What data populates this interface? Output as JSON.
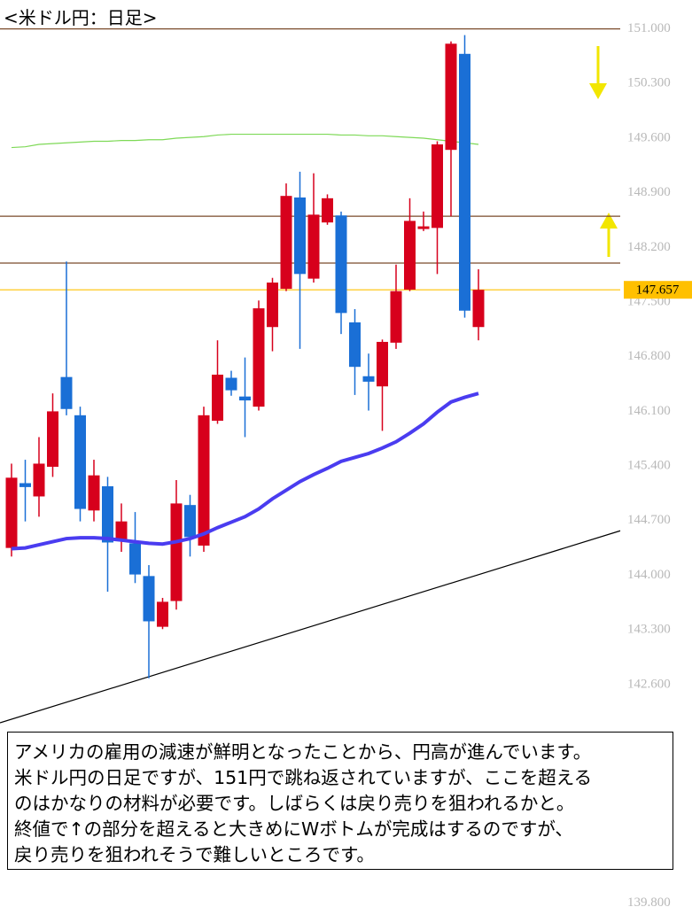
{
  "chart_data": {
    "type": "candlestick",
    "title": "<米ドル円：日足>",
    "up_color": "#d7001c",
    "down_color": "#1a6fd6",
    "open": [
      144.35,
      145.18,
      145.01,
      145.39,
      146.54,
      146.05,
      144.83,
      145.14,
      144.44,
      144.41,
      143.99,
      143.34,
      143.67,
      144.9,
      144.38,
      145.98,
      146.53,
      146.29,
      146.16,
      147.18,
      147.67,
      148.84,
      147.8,
      148.52,
      148.61,
      147.24,
      146.55,
      146.42,
      146.98,
      147.66,
      148.44,
      148.45,
      149.45,
      150.68,
      147.18
    ],
    "high": [
      145.43,
      145.48,
      145.77,
      146.33,
      148.02,
      146.16,
      145.48,
      145.26,
      144.92,
      144.81,
      144.13,
      143.71,
      145.22,
      145.03,
      146.16,
      147.01,
      146.62,
      146.79,
      147.52,
      147.81,
      149.02,
      149.17,
      149.15,
      148.88,
      148.66,
      147.41,
      146.84,
      147.02,
      147.98,
      148.83,
      148.66,
      149.56,
      150.84,
      150.92,
      147.92
    ],
    "low": [
      144.24,
      144.69,
      144.75,
      145.26,
      146.05,
      144.69,
      144.69,
      143.79,
      144.3,
      143.9,
      142.68,
      143.31,
      143.56,
      144.24,
      144.3,
      145.94,
      146.3,
      145.77,
      146.11,
      146.87,
      147.64,
      146.9,
      147.75,
      148.49,
      147.09,
      146.31,
      146.11,
      145.85,
      146.9,
      147.64,
      148.41,
      147.86,
      148.6,
      147.3,
      147.01
    ],
    "close": [
      145.25,
      145.13,
      145.43,
      146.1,
      146.13,
      144.85,
      145.28,
      144.42,
      144.69,
      144.01,
      143.41,
      143.66,
      144.92,
      144.49,
      146.05,
      146.57,
      146.37,
      146.24,
      147.42,
      147.75,
      148.86,
      147.86,
      148.62,
      148.83,
      147.36,
      146.67,
      146.48,
      146.99,
      147.64,
      148.54,
      148.47,
      149.52,
      150.81,
      147.39,
      147.657
    ],
    "moving_averages": [
      {
        "color": "#4a3cf0",
        "values": [
          144.34,
          144.35,
          144.39,
          144.43,
          144.47,
          144.48,
          144.48,
          144.47,
          144.45,
          144.43,
          144.41,
          144.4,
          144.43,
          144.47,
          144.53,
          144.61,
          144.68,
          144.75,
          144.85,
          144.98,
          145.09,
          145.2,
          145.29,
          145.37,
          145.46,
          145.51,
          145.56,
          145.63,
          145.71,
          145.82,
          145.94,
          146.09,
          146.22,
          146.28,
          146.33
        ]
      },
      {
        "color": "#7ed957",
        "values": [
          149.48,
          149.49,
          149.52,
          149.53,
          149.54,
          149.55,
          149.56,
          149.56,
          149.57,
          149.57,
          149.58,
          149.58,
          149.6,
          149.61,
          149.62,
          149.64,
          149.65,
          149.65,
          149.65,
          149.65,
          149.65,
          149.65,
          149.65,
          149.65,
          149.64,
          149.64,
          149.63,
          149.63,
          149.62,
          149.61,
          149.6,
          149.58,
          149.56,
          149.54,
          149.52
        ]
      }
    ],
    "trendline": {
      "color": "#000000",
      "values": [
        142.11,
        144.57
      ]
    },
    "levels": [
      {
        "value": 151.0,
        "color": "#7a4a2a"
      },
      {
        "value": 148.6,
        "color": "#7a4a2a"
      },
      {
        "value": 148.0,
        "color": "#7a4a2a"
      }
    ],
    "current_price": 147.657,
    "current_color": "#ffc000",
    "ylim": [
      139.75,
      151.37
    ],
    "yticks": [
      {
        "value": 151.0,
        "label": "151.000"
      },
      {
        "value": 150.3,
        "label": "150.300"
      },
      {
        "value": 149.6,
        "label": "149.600"
      },
      {
        "value": 148.9,
        "label": "148.900"
      },
      {
        "value": 148.2,
        "label": "148.200"
      },
      {
        "value": 147.5,
        "label": "147.500"
      },
      {
        "value": 146.8,
        "label": "146.800"
      },
      {
        "value": 146.1,
        "label": "146.100"
      },
      {
        "value": 145.4,
        "label": "145.400"
      },
      {
        "value": 144.7,
        "label": "144.700"
      },
      {
        "value": 144.0,
        "label": "144.000"
      },
      {
        "value": 143.3,
        "label": "143.300"
      },
      {
        "value": 142.6,
        "label": "142.600"
      },
      {
        "value": 139.8,
        "label": "139.800"
      }
    ]
  },
  "note": {
    "lines": [
      "アメリカの雇用の減速が鮮明となったことから、円高が進んでいます。",
      "米ドル円の日足ですが、151円で跳ね返されていますが、ここを超える",
      "のはかなりの材料が必要です。しばらくは戻り売りを狙われるかと。",
      "終値で↑の部分を超えると大きめにWボトムが完成はするのですが、",
      "戻り売りを狙われそうで難しいところです。"
    ]
  }
}
